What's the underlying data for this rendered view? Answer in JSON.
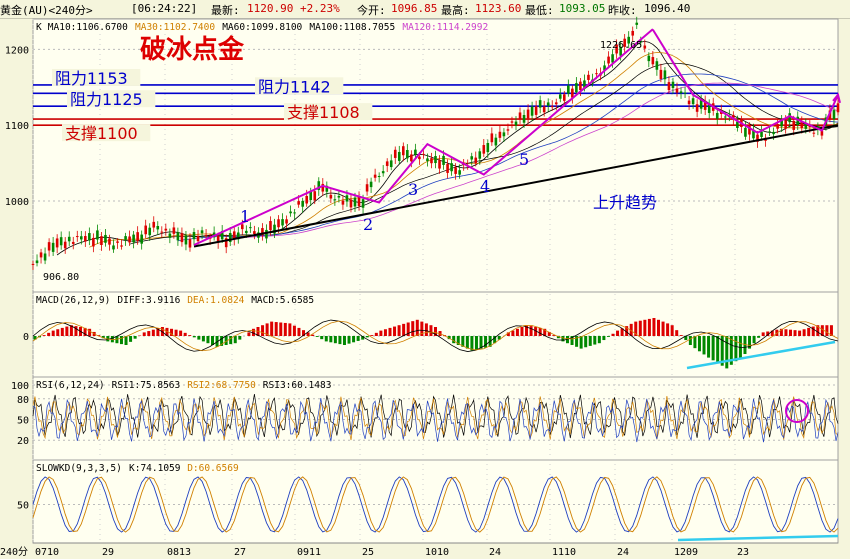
{
  "topbar": {
    "title": "黄金(AU)<240分>",
    "time": "[06:24:22]",
    "latest_label": "最新:",
    "latest_value": "1120.90 +2.23%",
    "open_label": "今开:",
    "open_value": "1096.85",
    "high_label": "最高:",
    "high_value": "1123.60",
    "low_label": "最低:",
    "low_value": "1093.05",
    "prev_label": "昨收:",
    "prev_value": "1096.40"
  },
  "main_panel": {
    "legend": [
      {
        "text": "K",
        "color": "#000000"
      },
      {
        "text": "MA10:1106.6700",
        "color": "#000000"
      },
      {
        "text": "MA30:1102.7400",
        "color": "#d08000"
      },
      {
        "text": "MA60:1099.8100",
        "color": "#000000"
      },
      {
        "text": "MA100:1108.7055",
        "color": "#000000"
      },
      {
        "text": "MA120:1114.2992",
        "color": "#cc44cc"
      }
    ],
    "headline": "破冰点金",
    "high_label": "1226.65",
    "low_label": "906.80",
    "trend_label": "上升趋势",
    "wave_labels": [
      "1",
      "2",
      "3",
      "4",
      "5"
    ],
    "levels": [
      {
        "label": "阻力1153",
        "value": 1153,
        "color": "#0000cc"
      },
      {
        "label": "阻力1142",
        "value": 1142,
        "color": "#0000cc"
      },
      {
        "label": "阻力1125",
        "value": 1125,
        "color": "#0000cc"
      },
      {
        "label": "支撑1108",
        "value": 1108,
        "color": "#cc0000"
      },
      {
        "label": "支撑1100",
        "value": 1100,
        "color": "#cc0000"
      }
    ]
  },
  "macd_panel": {
    "legend": [
      {
        "text": "MACD(26,12,9)",
        "color": "#000000"
      },
      {
        "text": "DIFF:3.9116",
        "color": "#000000"
      },
      {
        "text": "DEA:1.0824",
        "color": "#d08000"
      },
      {
        "text": "MACD:5.6585",
        "color": "#000000"
      }
    ]
  },
  "rsi_panel": {
    "legend": [
      {
        "text": "RSI(6,12,24)",
        "color": "#000000"
      },
      {
        "text": "RSI1:75.8563",
        "color": "#000000"
      },
      {
        "text": "RSI2:68.7750",
        "color": "#d08000"
      },
      {
        "text": "RSI3:60.1483",
        "color": "#000000"
      }
    ]
  },
  "kd_panel": {
    "legend": [
      {
        "text": "SLOWKD(9,3,3,5)",
        "color": "#000000"
      },
      {
        "text": "K:74.1059",
        "color": "#000000"
      },
      {
        "text": "D:60.6569",
        "color": "#d08000"
      }
    ]
  },
  "xaxis": {
    "unit": "240分",
    "ticks": [
      "0710",
      "29",
      "0813",
      "27",
      "0911",
      "25",
      "1010",
      "24",
      "1110",
      "24",
      "1209",
      "23"
    ]
  },
  "chart_data": [
    {
      "type": "candlestick",
      "title": "破冰点金",
      "yticks": [
        1000,
        1100,
        1200
      ],
      "ylim": [
        880,
        1240
      ],
      "grid": true,
      "close_path": [
        [
          0,
          915
        ],
        [
          2,
          935
        ],
        [
          5,
          948
        ],
        [
          8,
          955
        ],
        [
          10,
          945
        ],
        [
          13,
          950
        ],
        [
          15,
          962
        ],
        [
          17,
          958
        ],
        [
          19,
          950
        ],
        [
          21,
          958
        ],
        [
          23,
          955
        ],
        [
          24,
          945
        ],
        [
          26,
          960
        ],
        [
          28,
          955
        ],
        [
          30,
          965
        ],
        [
          32,
          985
        ],
        [
          34,
          1005
        ],
        [
          36,
          1018
        ],
        [
          37,
          1005
        ],
        [
          39,
          995
        ],
        [
          41,
          1000
        ],
        [
          42,
          1025
        ],
        [
          44,
          1050
        ],
        [
          46,
          1068
        ],
        [
          47,
          1060
        ],
        [
          49,
          1055
        ],
        [
          51,
          1045
        ],
        [
          53,
          1040
        ],
        [
          55,
          1060
        ],
        [
          57,
          1080
        ],
        [
          59,
          1095
        ],
        [
          61,
          1110
        ],
        [
          63,
          1120
        ],
        [
          65,
          1130
        ],
        [
          67,
          1150
        ],
        [
          69,
          1160
        ],
        [
          71,
          1175
        ],
        [
          73,
          1200
        ],
        [
          74,
          1210
        ],
        [
          75,
          1226.65
        ],
        [
          76,
          1200
        ],
        [
          78,
          1170
        ],
        [
          80,
          1150
        ],
        [
          82,
          1130
        ],
        [
          84,
          1120
        ],
        [
          86,
          1110
        ],
        [
          88,
          1100
        ],
        [
          90,
          1085
        ],
        [
          92,
          1095
        ],
        [
          94,
          1108
        ],
        [
          96,
          1095
        ],
        [
          98,
          1090
        ],
        [
          99,
          1110
        ],
        [
          100,
          1120.9
        ]
      ],
      "high": 1226.65,
      "low": 906.8,
      "levels": [
        1153,
        1142,
        1125,
        1108,
        1100
      ],
      "trendline": {
        "from": [
          20,
          940
        ],
        "to": [
          100,
          1100
        ]
      },
      "wave_points": [
        [
          20,
          942
        ],
        [
          36,
          1020
        ],
        [
          43,
          998
        ],
        [
          49,
          1075
        ],
        [
          56,
          1035
        ],
        [
          77,
          1226.65
        ]
      ]
    },
    {
      "type": "bar",
      "title": "MACD(26,12,9)",
      "yticks": [
        0
      ],
      "series": [
        {
          "name": "MACD",
          "values": [
            -2,
            3,
            6,
            4,
            -3,
            -5,
            2,
            5,
            3,
            -2,
            -6,
            -4,
            4,
            8,
            7,
            2,
            -3,
            -5,
            -2,
            3,
            6,
            9,
            5,
            -4,
            -8,
            -6,
            2,
            6,
            4,
            -3,
            -7,
            -4,
            3,
            8,
            10,
            6,
            -5,
            -12,
            -18,
            -10,
            2,
            4,
            3,
            6
          ]
        }
      ]
    },
    {
      "type": "line",
      "title": "RSI(6,12,24)",
      "yticks": [
        20,
        50,
        80,
        100
      ],
      "ylim": [
        0,
        100
      ]
    },
    {
      "type": "line",
      "title": "SLOWKD(9,3,3,5)",
      "yticks": [
        50
      ],
      "ylim": [
        0,
        100
      ]
    }
  ]
}
